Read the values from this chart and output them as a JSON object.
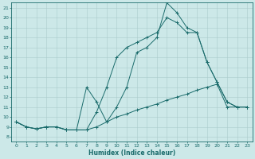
{
  "xlabel": "Humidex (Indice chaleur)",
  "xlim": [
    -0.5,
    23.5
  ],
  "ylim": [
    7.5,
    21.5
  ],
  "xticks": [
    0,
    1,
    2,
    3,
    4,
    5,
    6,
    7,
    8,
    9,
    10,
    11,
    12,
    13,
    14,
    15,
    16,
    17,
    18,
    19,
    20,
    21,
    22,
    23
  ],
  "yticks": [
    8,
    9,
    10,
    11,
    12,
    13,
    14,
    15,
    16,
    17,
    18,
    19,
    20,
    21
  ],
  "bg_color": "#cce8e8",
  "line_color": "#1a6b6b",
  "grid_color": "#aacccc",
  "line1_x": [
    0,
    1,
    2,
    3,
    4,
    5,
    6,
    7,
    8,
    9,
    10,
    11,
    12,
    13,
    14,
    15,
    16,
    17,
    18,
    19,
    20,
    21,
    22,
    23
  ],
  "line1_y": [
    9.5,
    9.0,
    8.8,
    9.0,
    9.0,
    8.7,
    8.7,
    8.7,
    9.0,
    9.5,
    10.0,
    10.3,
    10.7,
    11.0,
    11.3,
    11.7,
    12.0,
    12.3,
    12.7,
    13.0,
    13.3,
    11.0,
    11.0,
    11.0
  ],
  "line2_x": [
    0,
    1,
    2,
    3,
    4,
    5,
    6,
    7,
    8,
    9,
    10,
    11,
    12,
    13,
    14,
    15,
    16,
    17,
    18,
    19,
    20,
    21,
    22,
    23
  ],
  "line2_y": [
    9.5,
    9.0,
    8.8,
    9.0,
    9.0,
    8.7,
    8.7,
    8.7,
    10.5,
    13.0,
    16.0,
    17.0,
    17.5,
    18.0,
    18.5,
    20.0,
    19.5,
    18.5,
    18.5,
    15.5,
    13.5,
    11.5,
    11.0,
    11.0
  ],
  "line3_x": [
    0,
    1,
    2,
    3,
    4,
    5,
    6,
    7,
    8,
    9,
    10,
    11,
    12,
    13,
    14,
    15,
    16,
    17,
    18,
    19,
    20,
    21,
    22,
    23
  ],
  "line3_y": [
    9.5,
    9.0,
    8.8,
    9.0,
    9.0,
    8.7,
    8.7,
    13.0,
    11.5,
    9.5,
    11.0,
    13.0,
    16.5,
    17.0,
    18.0,
    21.5,
    20.5,
    19.0,
    18.5,
    15.5,
    13.5,
    11.5,
    11.0,
    11.0
  ]
}
